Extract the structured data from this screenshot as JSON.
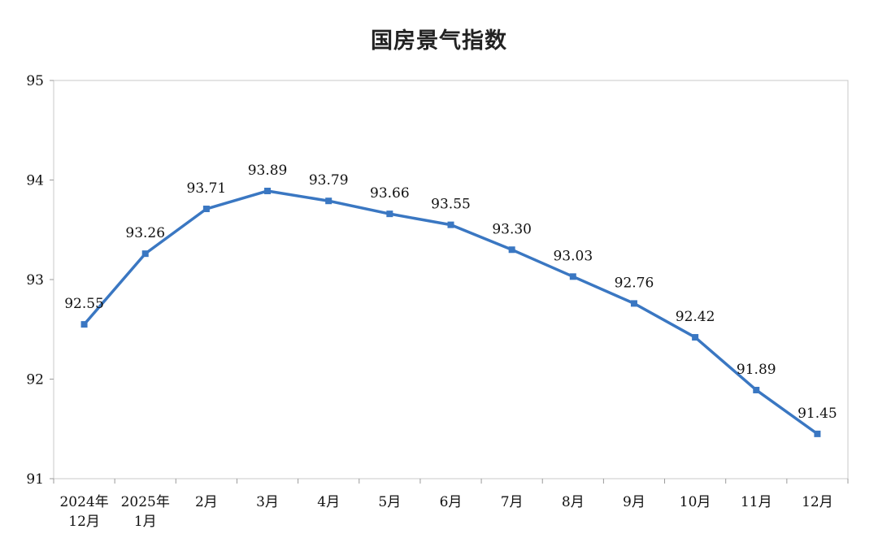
{
  "chart_data": {
    "type": "line",
    "title": "国房景气指数",
    "xlabel": "",
    "ylabel": "",
    "categories": [
      [
        "2024年",
        "12月"
      ],
      [
        "2025年",
        "1月"
      ],
      [
        "2月"
      ],
      [
        "3月"
      ],
      [
        "4月"
      ],
      [
        "5月"
      ],
      [
        "6月"
      ],
      [
        "7月"
      ],
      [
        "8月"
      ],
      [
        "9月"
      ],
      [
        "10月"
      ],
      [
        "11月"
      ],
      [
        "12月"
      ]
    ],
    "series": [
      {
        "values": [
          92.55,
          93.26,
          93.71,
          93.89,
          93.79,
          93.66,
          93.55,
          93.3,
          93.03,
          92.76,
          92.42,
          91.89,
          91.45
        ],
        "labels": [
          "92.55",
          "93.26",
          "93.71",
          "93.89",
          "93.79",
          "93.66",
          "93.55",
          "93.30",
          "93.03",
          "92.76",
          "92.42",
          "91.89",
          "91.45"
        ],
        "color": "#3a77c2"
      }
    ],
    "ylim": [
      91,
      95
    ],
    "yticks": [
      "91",
      "92",
      "93",
      "94",
      "95"
    ],
    "grid": false,
    "legend": "none"
  }
}
